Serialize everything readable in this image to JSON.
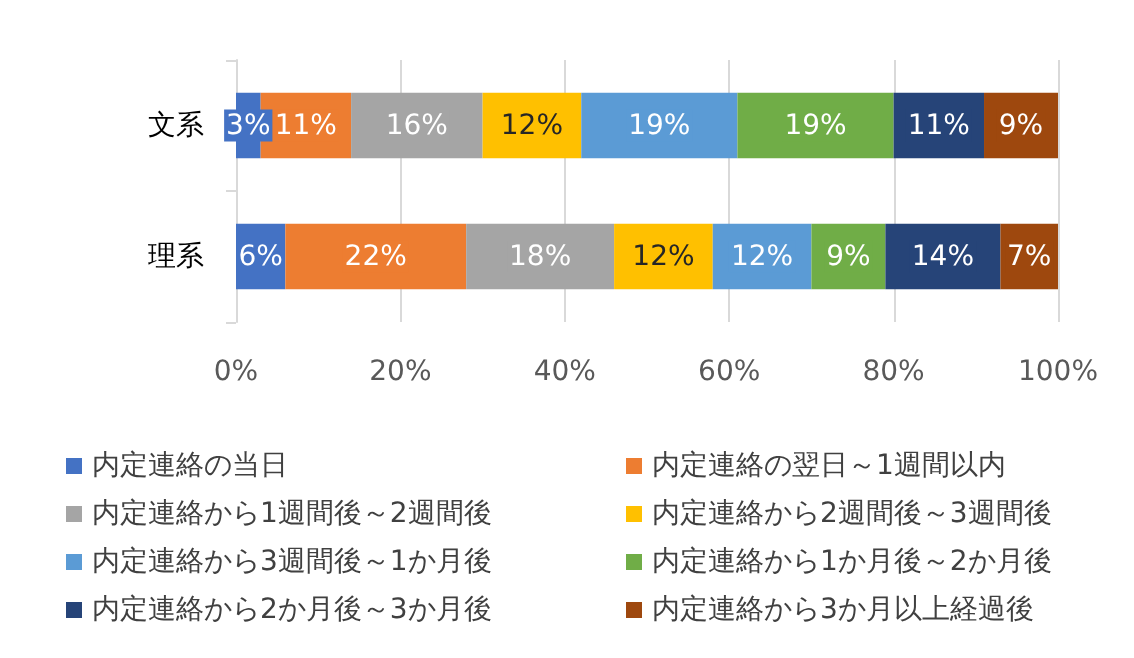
{
  "chart_data": {
    "type": "bar",
    "orientation": "horizontal",
    "stacked": true,
    "categories": [
      "文系",
      "理系"
    ],
    "series": [
      {
        "name": "内定連絡の当日",
        "color": "#4472c4",
        "values": [
          3,
          6
        ],
        "value_labels": [
          "3%",
          "6%"
        ]
      },
      {
        "name": "内定連絡の翌日～1週間以内",
        "color": "#ed7d31",
        "values": [
          11,
          22
        ],
        "value_labels": [
          "11%",
          "22%"
        ]
      },
      {
        "name": "内定連絡から1週間後～2週間後",
        "color": "#a5a5a5",
        "values": [
          16,
          18
        ],
        "value_labels": [
          "16%",
          "18%"
        ]
      },
      {
        "name": "内定連絡から2週間後～3週間後",
        "color": "#ffc000",
        "values": [
          12,
          12
        ],
        "value_labels": [
          "12%",
          "12%"
        ]
      },
      {
        "name": "内定連絡から3週間後～1か月後",
        "color": "#5b9bd5",
        "values": [
          19,
          12
        ],
        "value_labels": [
          "19%",
          "12%"
        ]
      },
      {
        "name": "内定連絡から1か月後～2か月後",
        "color": "#70ad47",
        "values": [
          19,
          9
        ],
        "value_labels": [
          "19%",
          "9%"
        ]
      },
      {
        "name": "内定連絡から2か月後～3か月後",
        "color": "#264478",
        "values": [
          11,
          14
        ],
        "value_labels": [
          "11%",
          "14%"
        ]
      },
      {
        "name": "内定連絡から3か月以上経過後",
        "color": "#9e480e",
        "values": [
          9,
          7
        ],
        "value_labels": [
          "9%",
          "7%"
        ]
      }
    ],
    "xlim": [
      0,
      100
    ],
    "xticks": [
      {
        "value": 0,
        "label": "0%"
      },
      {
        "value": 20,
        "label": "20%"
      },
      {
        "value": 40,
        "label": "40%"
      },
      {
        "value": 60,
        "label": "60%"
      },
      {
        "value": 80,
        "label": "80%"
      },
      {
        "value": 100,
        "label": "100%"
      }
    ],
    "grid": "x",
    "legend": "bottom"
  }
}
